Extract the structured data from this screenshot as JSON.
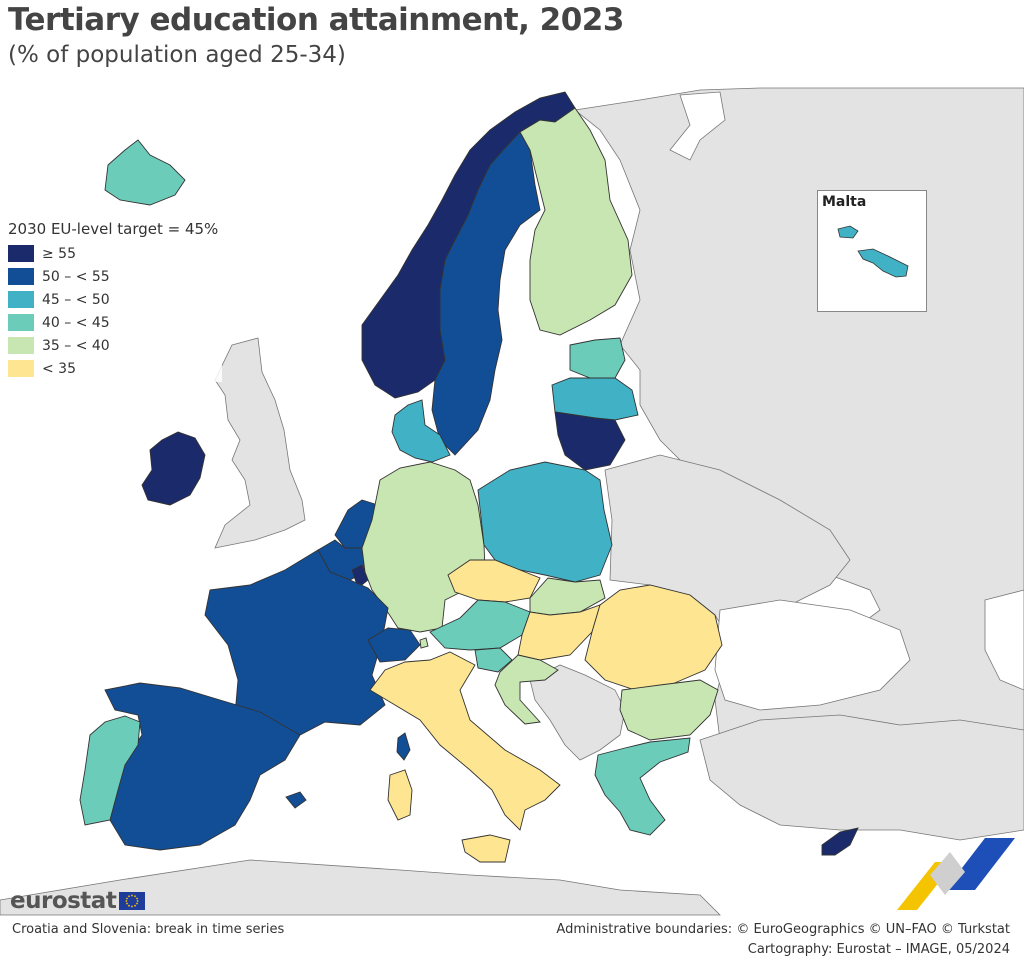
{
  "title": "Tertiary education attainment, 2023",
  "subtitle": "(% of population aged 25-34)",
  "legend": {
    "title": "2030 EU-level target = 45%",
    "classes": [
      {
        "label": "≥ 55",
        "color": "#1b2a6b"
      },
      {
        "label": "50 – < 55",
        "color": "#124e96"
      },
      {
        "label": "45 – < 50",
        "color": "#41b2c6"
      },
      {
        "label": "40 – < 45",
        "color": "#6cccba"
      },
      {
        "label": "35 – < 40",
        "color": "#c8e6b1"
      },
      {
        "label": "< 35",
        "color": "#fde591"
      }
    ]
  },
  "colors": {
    "non_eu": "#e3e3e3",
    "sea": "#ffffff",
    "border": "#333333"
  },
  "inset": {
    "label": "Malta",
    "class": "45 – < 50"
  },
  "countries": [
    {
      "name": "Ireland",
      "class": "≥ 55"
    },
    {
      "name": "Norway",
      "class": "≥ 55"
    },
    {
      "name": "Lithuania",
      "class": "≥ 55"
    },
    {
      "name": "Cyprus",
      "class": "≥ 55"
    },
    {
      "name": "Luxembourg",
      "class": "≥ 55"
    },
    {
      "name": "Sweden",
      "class": "50 – < 55"
    },
    {
      "name": "France",
      "class": "50 – < 55"
    },
    {
      "name": "Spain",
      "class": "50 – < 55"
    },
    {
      "name": "Netherlands",
      "class": "50 – < 55"
    },
    {
      "name": "Belgium",
      "class": "50 – < 55"
    },
    {
      "name": "Switzerland",
      "class": "50 – < 55"
    },
    {
      "name": "Denmark",
      "class": "45 – < 50"
    },
    {
      "name": "Poland",
      "class": "45 – < 50"
    },
    {
      "name": "Latvia",
      "class": "45 – < 50"
    },
    {
      "name": "Malta",
      "class": "45 – < 50"
    },
    {
      "name": "Iceland",
      "class": "40 – < 45"
    },
    {
      "name": "Portugal",
      "class": "40 – < 45"
    },
    {
      "name": "Estonia",
      "class": "40 – < 45"
    },
    {
      "name": "Austria",
      "class": "40 – < 45"
    },
    {
      "name": "Slovenia",
      "class": "40 – < 45"
    },
    {
      "name": "Greece",
      "class": "40 – < 45"
    },
    {
      "name": "Finland",
      "class": "35 – < 40"
    },
    {
      "name": "Germany",
      "class": "35 – < 40"
    },
    {
      "name": "Slovakia",
      "class": "35 – < 40"
    },
    {
      "name": "Croatia",
      "class": "35 – < 40"
    },
    {
      "name": "Bulgaria",
      "class": "35 – < 40"
    },
    {
      "name": "Liechtenstein",
      "class": "35 – < 40"
    },
    {
      "name": "Czechia",
      "class": "< 35"
    },
    {
      "name": "Hungary",
      "class": "< 35"
    },
    {
      "name": "Romania",
      "class": "< 35"
    },
    {
      "name": "Italy",
      "class": "< 35"
    }
  ],
  "logo": {
    "text": "eurostat"
  },
  "footnote": "Croatia and Slovenia: break in time series",
  "credits": {
    "line1": "Administrative boundaries: © EuroGeographics © UN–FAO © Turkstat",
    "line2": "Cartography: Eurostat – IMAGE, 05/2024"
  }
}
